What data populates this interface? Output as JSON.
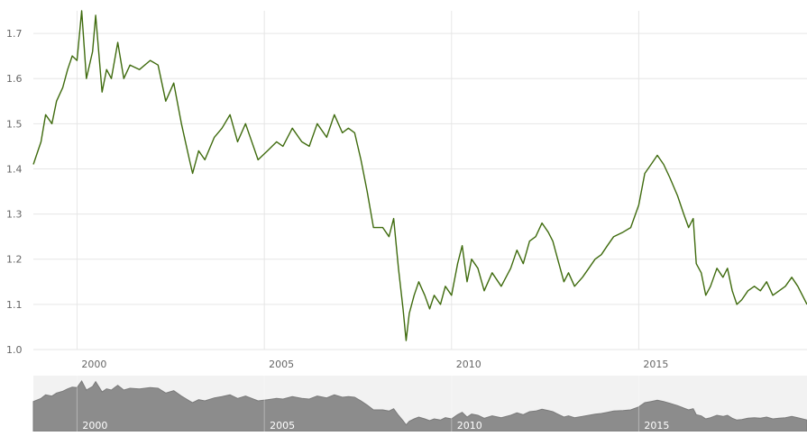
{
  "chart_data": {
    "type": "line",
    "title": "",
    "xlabel": "",
    "ylabel": "",
    "ylim": [
      1.0,
      1.75
    ],
    "xlim": [
      "1998-11-01",
      "2019-06-30"
    ],
    "grid": true,
    "y_ticks": [
      "1.0",
      "1.1",
      "1.2",
      "1.3",
      "1.4",
      "1.5",
      "1.6",
      "1.7"
    ],
    "x_ticks": [
      "2000",
      "2005",
      "2010",
      "2015"
    ],
    "navigator_ticks": [
      "2000",
      "2005",
      "2010",
      "2015"
    ],
    "series": [
      {
        "color": "#3f6b0e",
        "points": [
          [
            "1998-11-01",
            1.41
          ],
          [
            "1999-01-15",
            1.46
          ],
          [
            "1999-03-01",
            1.52
          ],
          [
            "1999-05-01",
            1.5
          ],
          [
            "1999-06-15",
            1.55
          ],
          [
            "1999-08-15",
            1.58
          ],
          [
            "1999-10-01",
            1.62
          ],
          [
            "1999-11-15",
            1.65
          ],
          [
            "2000-01-01",
            1.64
          ],
          [
            "2000-02-15",
            1.75
          ],
          [
            "2000-04-01",
            1.6
          ],
          [
            "2000-06-01",
            1.66
          ],
          [
            "2000-07-01",
            1.74
          ],
          [
            "2000-09-01",
            1.57
          ],
          [
            "2000-10-15",
            1.62
          ],
          [
            "2000-12-01",
            1.6
          ],
          [
            "2001-02-01",
            1.68
          ],
          [
            "2001-04-01",
            1.6
          ],
          [
            "2001-06-01",
            1.63
          ],
          [
            "2001-09-01",
            1.62
          ],
          [
            "2001-12-15",
            1.64
          ],
          [
            "2002-03-01",
            1.63
          ],
          [
            "2002-05-15",
            1.55
          ],
          [
            "2002-08-01",
            1.59
          ],
          [
            "2002-10-15",
            1.5
          ],
          [
            "2003-01-01",
            1.42
          ],
          [
            "2003-02-01",
            1.39
          ],
          [
            "2003-04-01",
            1.44
          ],
          [
            "2003-06-01",
            1.42
          ],
          [
            "2003-09-01",
            1.47
          ],
          [
            "2003-11-15",
            1.49
          ],
          [
            "2004-02-01",
            1.52
          ],
          [
            "2004-04-15",
            1.46
          ],
          [
            "2004-07-01",
            1.5
          ],
          [
            "2004-11-01",
            1.42
          ],
          [
            "2005-02-01",
            1.44
          ],
          [
            "2005-05-01",
            1.46
          ],
          [
            "2005-07-01",
            1.45
          ],
          [
            "2005-10-01",
            1.49
          ],
          [
            "2006-01-01",
            1.46
          ],
          [
            "2006-03-15",
            1.45
          ],
          [
            "2006-06-01",
            1.5
          ],
          [
            "2006-09-01",
            1.47
          ],
          [
            "2006-11-15",
            1.52
          ],
          [
            "2007-02-01",
            1.48
          ],
          [
            "2007-04-01",
            1.49
          ],
          [
            "2007-06-01",
            1.48
          ],
          [
            "2007-08-01",
            1.42
          ],
          [
            "2007-10-01",
            1.35
          ],
          [
            "2007-12-01",
            1.27
          ],
          [
            "2008-03-01",
            1.27
          ],
          [
            "2008-05-01",
            1.25
          ],
          [
            "2008-06-15",
            1.29
          ],
          [
            "2008-08-01",
            1.18
          ],
          [
            "2008-09-15",
            1.09
          ],
          [
            "2008-10-15",
            1.02
          ],
          [
            "2008-11-15",
            1.08
          ],
          [
            "2009-01-01",
            1.12
          ],
          [
            "2009-02-15",
            1.15
          ],
          [
            "2009-04-15",
            1.12
          ],
          [
            "2009-06-01",
            1.09
          ],
          [
            "2009-07-15",
            1.12
          ],
          [
            "2009-09-15",
            1.1
          ],
          [
            "2009-11-01",
            1.14
          ],
          [
            "2010-01-01",
            1.12
          ],
          [
            "2010-03-01",
            1.19
          ],
          [
            "2010-04-15",
            1.23
          ],
          [
            "2010-06-01",
            1.15
          ],
          [
            "2010-07-15",
            1.2
          ],
          [
            "2010-09-15",
            1.18
          ],
          [
            "2010-11-15",
            1.13
          ],
          [
            "2011-02-01",
            1.17
          ],
          [
            "2011-05-01",
            1.14
          ],
          [
            "2011-08-01",
            1.18
          ],
          [
            "2011-10-01",
            1.22
          ],
          [
            "2011-12-01",
            1.19
          ],
          [
            "2012-02-01",
            1.24
          ],
          [
            "2012-04-01",
            1.25
          ],
          [
            "2012-06-01",
            1.28
          ],
          [
            "2012-08-01",
            1.26
          ],
          [
            "2012-09-15",
            1.24
          ],
          [
            "2012-11-01",
            1.2
          ],
          [
            "2013-01-01",
            1.15
          ],
          [
            "2013-02-15",
            1.17
          ],
          [
            "2013-04-15",
            1.14
          ],
          [
            "2013-07-01",
            1.16
          ],
          [
            "2013-09-01",
            1.18
          ],
          [
            "2013-11-01",
            1.2
          ],
          [
            "2014-01-01",
            1.21
          ],
          [
            "2014-03-01",
            1.23
          ],
          [
            "2014-05-01",
            1.25
          ],
          [
            "2014-08-01",
            1.26
          ],
          [
            "2014-10-15",
            1.27
          ],
          [
            "2015-01-01",
            1.32
          ],
          [
            "2015-03-01",
            1.39
          ],
          [
            "2015-05-01",
            1.41
          ],
          [
            "2015-07-01",
            1.43
          ],
          [
            "2015-09-01",
            1.41
          ],
          [
            "2015-11-01",
            1.38
          ],
          [
            "2016-01-15",
            1.34
          ],
          [
            "2016-03-15",
            1.3
          ],
          [
            "2016-05-01",
            1.27
          ],
          [
            "2016-06-15",
            1.29
          ],
          [
            "2016-07-15",
            1.19
          ],
          [
            "2016-09-01",
            1.17
          ],
          [
            "2016-10-15",
            1.12
          ],
          [
            "2016-12-01",
            1.14
          ],
          [
            "2017-02-01",
            1.18
          ],
          [
            "2017-04-01",
            1.16
          ],
          [
            "2017-05-15",
            1.18
          ],
          [
            "2017-07-01",
            1.13
          ],
          [
            "2017-08-15",
            1.1
          ],
          [
            "2017-10-01",
            1.11
          ],
          [
            "2017-12-01",
            1.13
          ],
          [
            "2018-02-01",
            1.14
          ],
          [
            "2018-04-01",
            1.13
          ],
          [
            "2018-06-01",
            1.15
          ],
          [
            "2018-08-01",
            1.12
          ],
          [
            "2018-10-01",
            1.13
          ],
          [
            "2018-12-01",
            1.14
          ],
          [
            "2019-02-01",
            1.16
          ],
          [
            "2019-04-01",
            1.14
          ],
          [
            "2019-06-30",
            1.1
          ]
        ]
      }
    ]
  }
}
